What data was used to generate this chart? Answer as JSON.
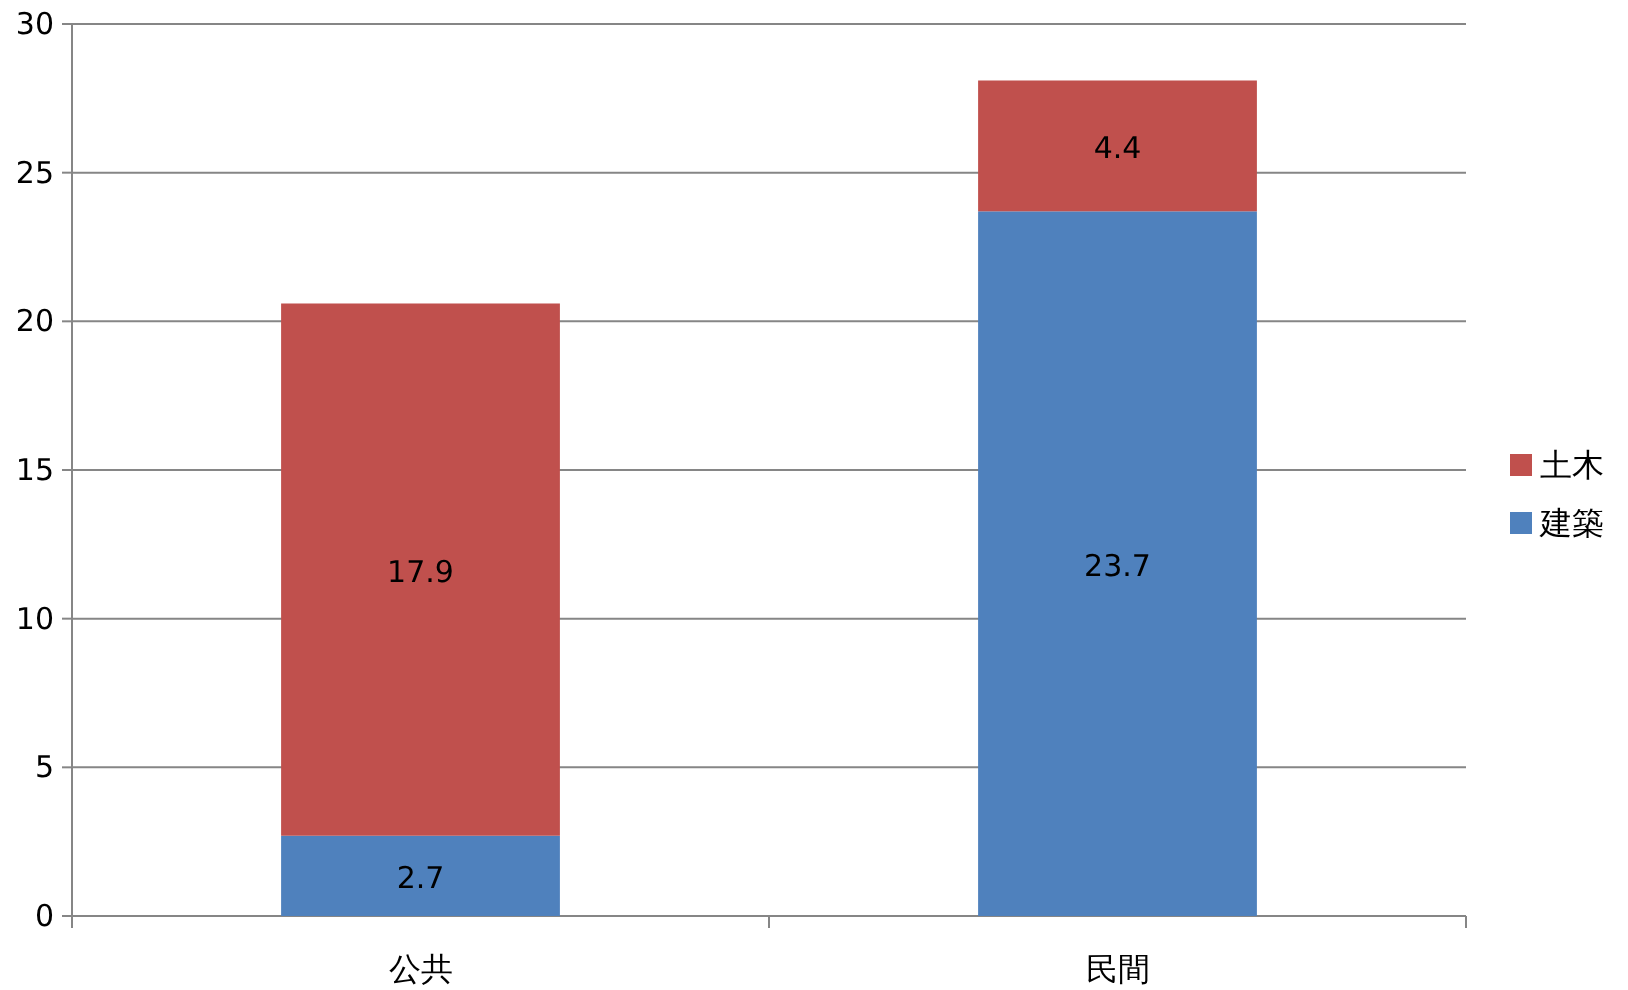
{
  "chart_data": {
    "type": "bar",
    "stacked": true,
    "categories": [
      "公共",
      "民間"
    ],
    "series": [
      {
        "name": "建築",
        "color": "#4f81bd",
        "values": [
          2.7,
          23.7
        ]
      },
      {
        "name": "土木",
        "color": "#c0504d",
        "values": [
          17.9,
          4.4
        ]
      }
    ],
    "ylim": [
      0,
      30
    ],
    "yticks": [
      0,
      5,
      10,
      15,
      20,
      25,
      30
    ],
    "grid": "y",
    "legend": "right",
    "data_labels": true
  }
}
